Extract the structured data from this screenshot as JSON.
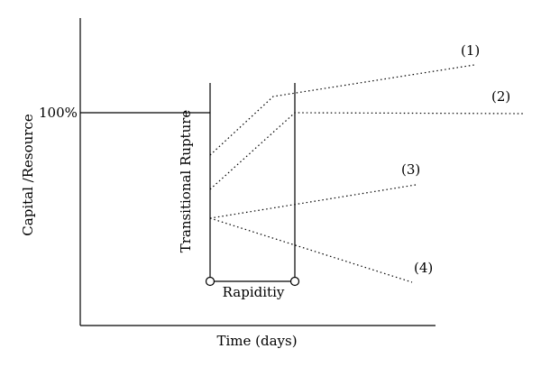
{
  "labels": {
    "y_axis": "Capital /Resource",
    "x_axis": "Time (days)",
    "hundred_percent": "100%",
    "transitional_rupture": "Transitional Rupture",
    "rapidity": "Rapiditiy"
  },
  "curves": [
    {
      "label": "(1)"
    },
    {
      "label": "(2)"
    },
    {
      "label": "(3)"
    },
    {
      "label": "(4)"
    }
  ],
  "colors": {
    "line": "#000000",
    "background": "#ffffff"
  }
}
